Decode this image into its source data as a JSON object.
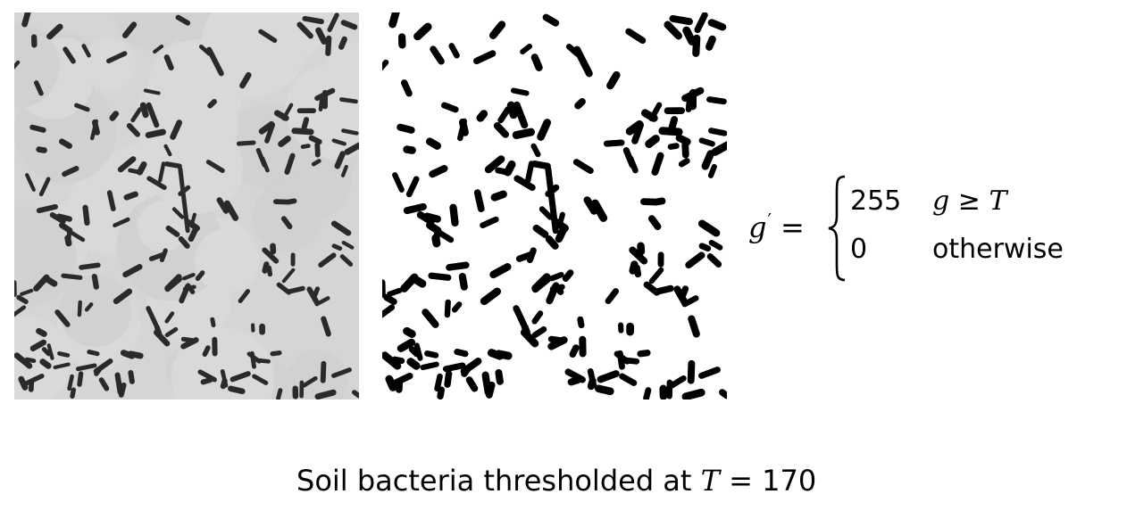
{
  "formula": {
    "lhs_var": "g",
    "lhs_prime": "′",
    "equals": "=",
    "case1_value": "255",
    "case1_var": "g",
    "case1_op": "≥",
    "case1_threshold_var": "T",
    "case2_value": "0",
    "case2_condition": "otherwise"
  },
  "caption": {
    "text": "Soil bacteria thresholded at",
    "var": "T",
    "equals": "=",
    "value": "170"
  },
  "colors": {
    "original_background": "#d5d5d5",
    "original_bacteria": "#2a2a2a",
    "thresholded_background": "#ffffff",
    "thresholded_bacteria": "#000000"
  }
}
